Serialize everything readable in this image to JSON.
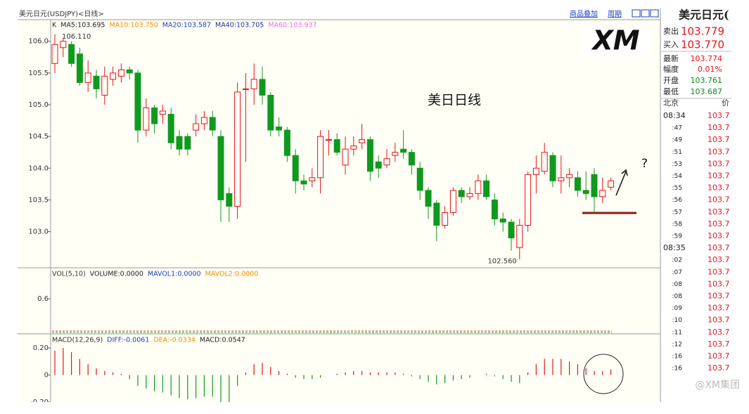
{
  "header": {
    "title": "美元日元(USDJPY)<日线>",
    "buttons": [
      "商品叠加",
      "周期"
    ]
  },
  "logo": "XM",
  "watermark": "@XM集团",
  "chart_data": [
    {
      "type": "candlestick",
      "legend_prefix": "K",
      "indicators": [
        {
          "name": "MA5:103.695",
          "color": "#222222"
        },
        {
          "name": "MA10:103.750",
          "color": "#f08c00"
        },
        {
          "name": "MA20:103.587",
          "color": "#1d3fbf"
        },
        {
          "name": "MA40:103.705",
          "color": "#2233aa"
        },
        {
          "name": "MA60:103.937",
          "color": "#e66ee6"
        }
      ],
      "open": [
        105.65,
        105.9,
        105.95,
        105.8,
        105.35,
        105.45,
        105.15,
        105.4,
        105.45,
        105.55,
        105.5,
        104.6,
        104.95,
        104.85,
        104.85,
        104.5,
        104.5,
        104.6,
        104.7,
        104.8,
        104.5,
        103.6,
        103.4,
        105.25,
        105.25,
        105.4,
        105.15,
        104.65,
        104.6,
        104.2,
        103.8,
        103.8,
        103.85,
        104.45,
        104.45,
        104.05,
        104.3,
        104.4,
        104.45,
        104.1,
        104.05,
        104.2,
        104.3,
        104.25,
        104.0,
        103.65,
        103.45,
        103.1,
        103.3,
        103.65,
        103.55,
        103.6,
        103.8,
        103.5,
        103.2,
        103.15,
        102.75,
        103.1,
        103.9,
        103.95,
        104.2,
        103.8,
        103.85,
        103.85,
        103.65,
        103.9,
        103.55,
        103.7
      ],
      "high": [
        106.11,
        106.05,
        106.0,
        105.9,
        105.7,
        105.55,
        105.6,
        105.6,
        105.65,
        105.6,
        105.55,
        105.1,
        105.0,
        105.0,
        104.95,
        104.6,
        104.55,
        104.85,
        104.9,
        104.9,
        104.6,
        103.7,
        105.35,
        105.5,
        105.65,
        105.6,
        105.2,
        104.8,
        104.65,
        104.3,
        103.9,
        104.0,
        104.6,
        104.6,
        104.55,
        104.5,
        104.5,
        104.7,
        104.5,
        104.2,
        104.3,
        104.4,
        104.6,
        104.3,
        104.1,
        103.7,
        103.5,
        103.4,
        103.7,
        103.7,
        103.7,
        103.9,
        103.9,
        103.6,
        103.3,
        103.2,
        103.2,
        103.95,
        104.2,
        104.4,
        104.25,
        104.2,
        104.0,
        103.95,
        103.95,
        104.0,
        103.85,
        103.85
      ],
      "low": [
        105.5,
        105.75,
        105.6,
        105.3,
        105.2,
        105.1,
        105.0,
        105.3,
        105.35,
        105.4,
        104.4,
        104.5,
        104.55,
        104.7,
        104.3,
        104.2,
        104.2,
        104.5,
        104.6,
        104.5,
        103.15,
        103.15,
        103.2,
        104.1,
        105.0,
        105.0,
        104.5,
        104.5,
        104.1,
        103.6,
        103.65,
        103.7,
        103.6,
        104.2,
        104.2,
        103.9,
        104.2,
        104.3,
        103.8,
        103.85,
        104.0,
        104.1,
        104.15,
        103.9,
        103.5,
        103.2,
        102.85,
        103.05,
        103.25,
        103.45,
        103.5,
        103.5,
        103.5,
        103.1,
        103.0,
        102.7,
        102.56,
        103.0,
        103.6,
        103.9,
        103.7,
        103.6,
        103.7,
        103.55,
        103.5,
        103.3,
        103.45,
        103.65
      ],
      "close": [
        105.95,
        106.0,
        105.65,
        105.35,
        105.5,
        105.25,
        105.45,
        105.5,
        105.55,
        105.5,
        104.6,
        104.95,
        104.7,
        104.9,
        104.4,
        104.3,
        104.3,
        104.7,
        104.8,
        104.6,
        103.5,
        103.4,
        105.2,
        105.25,
        105.4,
        105.15,
        104.6,
        104.6,
        104.2,
        103.8,
        103.75,
        103.85,
        104.5,
        104.45,
        104.25,
        104.3,
        104.35,
        104.45,
        103.95,
        104.0,
        104.15,
        104.25,
        104.25,
        104.05,
        103.65,
        103.4,
        103.1,
        103.3,
        103.65,
        103.55,
        103.6,
        103.8,
        103.55,
        103.2,
        103.15,
        102.9,
        103.1,
        103.9,
        104.0,
        104.25,
        103.8,
        103.85,
        103.9,
        103.65,
        103.6,
        103.55,
        103.65,
        103.8
      ],
      "up_color": "#e8101a",
      "down_color": "#0f9a1e",
      "ylim": [
        102.43,
        106.34
      ],
      "yticks": [
        {
          "value": 106,
          "label": "106.0"
        },
        105.5,
        {
          "value": 105,
          "label": "105.0"
        },
        104.5,
        {
          "value": 104,
          "label": "104.0"
        },
        103.5,
        {
          "value": 103,
          "label": "103.0"
        }
      ],
      "annotations": [
        "106.110",
        "102.560",
        "美日日线",
        "?"
      ]
    },
    {
      "type": "volume",
      "legend_prefix": "VOL(5,10)",
      "indicators": [
        {
          "name": "VOLUME:0.0000",
          "color": "#222222"
        },
        {
          "name": "MAVOL1:0.0000",
          "color": "#1d3fbf"
        },
        {
          "name": "MAVOL2:0.0000",
          "color": "#f08c00"
        }
      ],
      "ylim": [
        0,
        1.16
      ],
      "yticks": [
        0.6
      ]
    },
    {
      "type": "macd",
      "legend_prefix": "MACD(12,26,9)",
      "indicators": [
        {
          "name": "DIFF:-0.0061",
          "color": "#1d3fbf"
        },
        {
          "name": "DEA:-0.0334",
          "color": "#f08c00"
        },
        {
          "name": "MACD:0.0547",
          "color": "#222222"
        }
      ],
      "values": [
        0.18,
        0.2,
        0.17,
        0.12,
        0.08,
        0.05,
        0.03,
        0.02,
        0.01,
        -0.03,
        -0.08,
        -0.1,
        -0.12,
        -0.13,
        -0.15,
        -0.17,
        -0.18,
        -0.17,
        -0.16,
        -0.16,
        -0.2,
        -0.2,
        -0.08,
        0.02,
        0.08,
        0.09,
        0.06,
        0.03,
        0.01,
        -0.02,
        -0.03,
        -0.03,
        -0.02,
        0.0,
        0.01,
        0.02,
        0.03,
        0.03,
        0.02,
        0.02,
        0.02,
        0.02,
        0.01,
        -0.01,
        -0.03,
        -0.05,
        -0.07,
        -0.06,
        -0.04,
        -0.03,
        -0.02,
        0.0,
        0.01,
        -0.01,
        -0.03,
        -0.05,
        -0.06,
        0.02,
        0.08,
        0.12,
        0.12,
        0.12,
        0.1,
        0.08,
        0.05,
        0.03,
        0.03,
        0.04
      ],
      "up_color": "#e8101a",
      "down_color": "#0f9a1e",
      "ylim": [
        -0.2,
        0.305
      ],
      "yticks": [
        {
          "value": 0.2,
          "label": "0.20"
        },
        0,
        {
          "value": -0.2,
          "label": "-0.20"
        }
      ]
    }
  ],
  "quote": {
    "title": "美元日元(",
    "rows": [
      {
        "label": "卖出",
        "value": "103.779"
      },
      {
        "label": "买入",
        "value": "103.770"
      },
      {
        "label": "最新",
        "value": "103.774"
      },
      {
        "label": "幅度",
        "value": "0.01%"
      },
      {
        "label": "开盘",
        "value": "103.761"
      },
      {
        "label": "最低",
        "value": "103.687"
      }
    ],
    "columns": [
      "北京",
      "价"
    ],
    "ticks": [
      {
        "time": "08:34",
        "price": "103.7"
      },
      {
        "time": ":47",
        "price": "103.7"
      },
      {
        "time": ":49",
        "price": "103.7"
      },
      {
        "time": ":51",
        "price": "103.7"
      },
      {
        "time": ":53",
        "price": "103.7"
      },
      {
        "time": ":54",
        "price": "103.7"
      },
      {
        "time": ":55",
        "price": "103.7"
      },
      {
        "time": ":56",
        "price": "103.7"
      },
      {
        "time": ":57",
        "price": "103.7"
      },
      {
        "time": ":58",
        "price": "103.7"
      },
      {
        "time": ":59",
        "price": "103.7"
      },
      {
        "time": "08:35",
        "price": "103.7"
      },
      {
        "time": ":02",
        "price": "103.7"
      },
      {
        "time": ":07",
        "price": "103.7"
      },
      {
        "time": ":08",
        "price": "103.7"
      },
      {
        "time": ":08",
        "price": "103.7"
      },
      {
        "time": ":09",
        "price": "103.7"
      },
      {
        "time": ":10",
        "price": "103.7"
      },
      {
        "time": ":11",
        "price": "103.7"
      },
      {
        "time": ":12",
        "price": "103.7"
      },
      {
        "time": ":16",
        "price": "103.7"
      },
      {
        "time": ":16",
        "price": "103.7"
      }
    ]
  }
}
